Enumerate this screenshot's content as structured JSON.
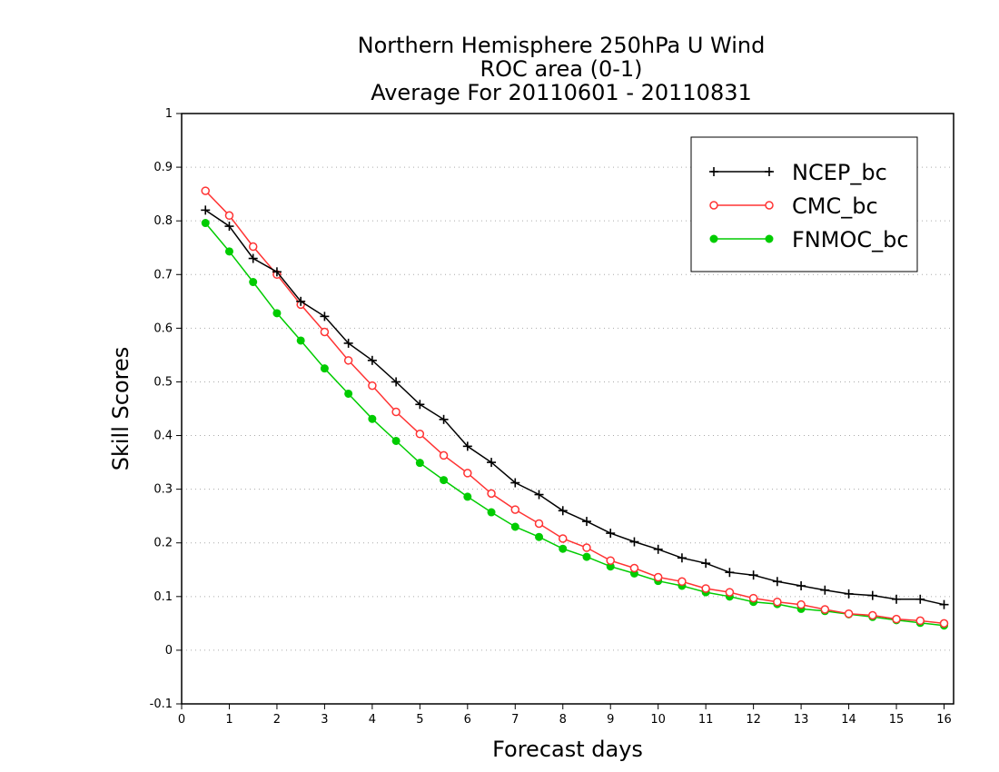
{
  "chart_data": {
    "type": "line",
    "title_lines": [
      "Northern Hemisphere 250hPa U Wind",
      "ROC area (0-1)",
      "Average For 20110601 - 20110831"
    ],
    "xlabel": "Forecast days",
    "ylabel": "Skill Scores",
    "xlim": [
      0,
      16.2
    ],
    "ylim": [
      -0.1,
      1
    ],
    "x_ticks": [
      0,
      1,
      2,
      3,
      4,
      5,
      6,
      7,
      8,
      9,
      10,
      11,
      12,
      13,
      14,
      15,
      16
    ],
    "y_ticks": [
      -0.1,
      0,
      0.1,
      0.2,
      0.3,
      0.4,
      0.5,
      0.6,
      0.7,
      0.8,
      0.9,
      1
    ],
    "y_tick_labels": [
      "-0.1",
      "0",
      "0.1",
      "0.2",
      "0.3",
      "0.4",
      "0.5",
      "0.6",
      "0.7",
      "0.8",
      "0.9",
      "1"
    ],
    "grid": "horizontal dotted",
    "legend_position": "top-right",
    "x": [
      0.5,
      1,
      1.5,
      2,
      2.5,
      3,
      3.5,
      4,
      4.5,
      5,
      5.5,
      6,
      6.5,
      7,
      7.5,
      8,
      8.5,
      9,
      9.5,
      10,
      10.5,
      11,
      11.5,
      12,
      12.5,
      13,
      13.5,
      14,
      14.5,
      15,
      15.5,
      16
    ],
    "series": [
      {
        "name": "NCEP_bc",
        "color": "#000000",
        "marker": "plus",
        "values": [
          0.82,
          0.79,
          0.73,
          0.705,
          0.65,
          0.622,
          0.572,
          0.54,
          0.5,
          0.458,
          0.43,
          0.38,
          0.35,
          0.312,
          0.29,
          0.26,
          0.24,
          0.218,
          0.202,
          0.188,
          0.172,
          0.162,
          0.145,
          0.14,
          0.128,
          0.12,
          0.112,
          0.105,
          0.102,
          0.095,
          0.095,
          0.085
        ]
      },
      {
        "name": "CMC_bc",
        "color": "#ff3333",
        "marker": "open-circle",
        "values": [
          0.856,
          0.81,
          0.752,
          0.7,
          0.644,
          0.593,
          0.54,
          0.493,
          0.444,
          0.403,
          0.363,
          0.33,
          0.292,
          0.262,
          0.236,
          0.208,
          0.191,
          0.167,
          0.153,
          0.136,
          0.128,
          0.115,
          0.108,
          0.097,
          0.09,
          0.085,
          0.076,
          0.068,
          0.065,
          0.058,
          0.055,
          0.05
        ]
      },
      {
        "name": "FNMOC_bc",
        "color": "#00cc00",
        "marker": "filled-circle",
        "values": [
          0.796,
          0.743,
          0.686,
          0.628,
          0.577,
          0.525,
          0.478,
          0.431,
          0.39,
          0.349,
          0.317,
          0.286,
          0.257,
          0.23,
          0.211,
          0.189,
          0.174,
          0.156,
          0.143,
          0.129,
          0.12,
          0.108,
          0.1,
          0.09,
          0.086,
          0.077,
          0.073,
          0.067,
          0.062,
          0.056,
          0.051,
          0.046
        ]
      }
    ]
  }
}
